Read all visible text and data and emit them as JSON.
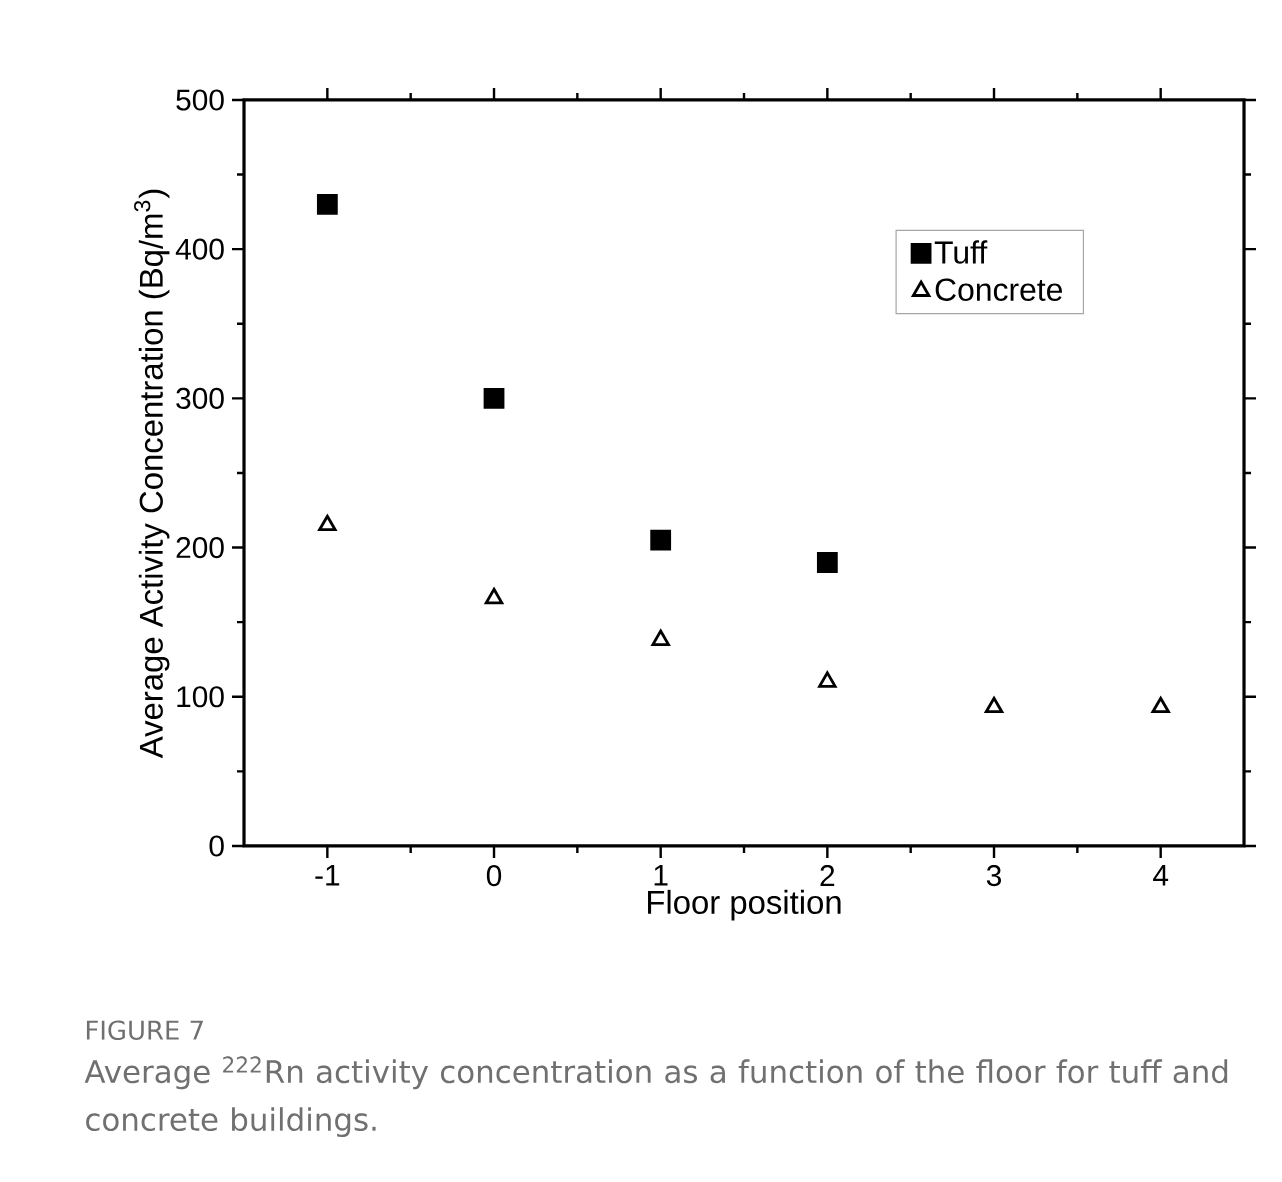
{
  "chart_data": {
    "type": "scatter",
    "xlabel": "Floor position",
    "ylabel": "Average Activity Concentration (Bq/m$^{3}$)",
    "x": [
      -1,
      0,
      1,
      2,
      3,
      4
    ],
    "series": [
      {
        "name": "Tuff",
        "color": "#000000",
        "marker": "square",
        "values": [
          430,
          300,
          205,
          190,
          null,
          null
        ]
      },
      {
        "name": "Concrete",
        "color": "#000000",
        "marker": "triangle",
        "values": [
          215,
          166,
          138,
          110,
          93,
          93
        ]
      }
    ],
    "xlim": [
      -1.5,
      4.5
    ],
    "ylim": [
      0,
      500
    ],
    "xticks": [
      -1,
      0,
      1,
      2,
      3,
      4
    ],
    "yticks": [
      0,
      100,
      200,
      300,
      400,
      500
    ],
    "grid": false,
    "legend": "top right",
    "annotations": [
      "FIGURE 7",
      "Average $^{222}$Rn activity concentration as a function of the floor for tuff and concrete buildings."
    ]
  }
}
